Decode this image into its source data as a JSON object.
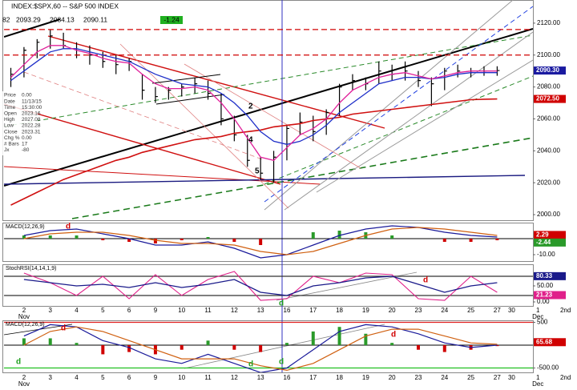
{
  "header": {
    "ohlc": [
      "82",
      "2093.29",
      "2084.13",
      "2090.11"
    ],
    "change": "-1.24"
  },
  "data_window": [
    [
      "Price",
      "0.00"
    ],
    [
      "Date",
      "11/13/15"
    ],
    [
      "Time",
      "15:30:00"
    ],
    [
      "Open",
      "2023.16"
    ],
    [
      "High",
      "2027.08"
    ],
    [
      "Low",
      "2022.28"
    ],
    [
      "Close",
      "2023.31"
    ],
    [
      "Chg %",
      "0.00"
    ],
    [
      "# Bars",
      "17"
    ],
    [
      "Jx",
      "-80"
    ]
  ],
  "chart_data": [
    {
      "type": "ohlc",
      "title": "INDEX:$SPX,60 -- S&P 500 INDEX",
      "color": "#000000",
      "x": [
        -0.5,
        0,
        0.5,
        1,
        1.5,
        2,
        2.5,
        3,
        3.5,
        4,
        4.5,
        5,
        5.5,
        6,
        6.5,
        7,
        7.5,
        8,
        8.5,
        9,
        9.5,
        10,
        10.5,
        11,
        11.5,
        12,
        12.5,
        13,
        13.5,
        14,
        14.5,
        15,
        15.5,
        16,
        16.5,
        17,
        17.5,
        18
      ],
      "high": [
        2092,
        2105,
        2110,
        2116,
        2114,
        2108,
        2106,
        2102,
        2100,
        2098,
        2088,
        2080,
        2080,
        2082,
        2086,
        2084,
        2076,
        2062,
        2050,
        2036,
        2040,
        2056,
        2064,
        2062,
        2066,
        2082,
        2088,
        2086,
        2096,
        2094,
        2096,
        2090,
        2086,
        2092,
        2094,
        2092,
        2093,
        2093
      ],
      "low": [
        2080,
        2086,
        2098,
        2104,
        2104,
        2098,
        2094,
        2092,
        2088,
        2090,
        2072,
        2070,
        2072,
        2074,
        2076,
        2072,
        2056,
        2046,
        2030,
        2022,
        2020,
        2034,
        2050,
        2046,
        2050,
        2062,
        2078,
        2078,
        2082,
        2084,
        2084,
        2080,
        2068,
        2078,
        2086,
        2086,
        2087,
        2087
      ],
      "close": [
        2088,
        2103,
        2108,
        2112,
        2106,
        2100,
        2100,
        2096,
        2094,
        2096,
        2078,
        2074,
        2078,
        2080,
        2082,
        2076,
        2060,
        2050,
        2034,
        2026,
        2036,
        2054,
        2058,
        2052,
        2064,
        2080,
        2084,
        2082,
        2090,
        2088,
        2090,
        2084,
        2082,
        2090,
        2090,
        2090,
        2090,
        2090.3
      ],
      "series": [
        {
          "color": "#d01010",
          "width": 1.6,
          "values": [
            2006,
            2010,
            2014,
            2018,
            2022,
            2025,
            2028,
            2031,
            2034,
            2036,
            2039,
            2041,
            2043,
            2045,
            2047,
            2048,
            2049,
            2051,
            2052,
            2053,
            2055,
            2056,
            2057,
            2059,
            2060,
            2061,
            2063,
            2064,
            2065,
            2066,
            2067,
            2068,
            2069,
            2070,
            2071,
            2072,
            2072.3,
            2072.5
          ]
        },
        {
          "color": "#1f2fc8",
          "width": 1.3,
          "values": [
            2084,
            2090,
            2096,
            2102,
            2104,
            2104,
            2102,
            2100,
            2098,
            2096,
            2092,
            2088,
            2085,
            2082,
            2081,
            2080,
            2076,
            2070,
            2062,
            2052,
            2046,
            2044,
            2046,
            2050,
            2056,
            2064,
            2070,
            2076,
            2082,
            2084,
            2086,
            2086,
            2085,
            2086,
            2088,
            2089,
            2089,
            2089
          ]
        },
        {
          "color": "#e0209a",
          "width": 1.3,
          "values": [
            2086,
            2094,
            2102,
            2106,
            2106,
            2103,
            2101,
            2098,
            2096,
            2095,
            2088,
            2082,
            2079,
            2079,
            2080,
            2078,
            2070,
            2060,
            2048,
            2036,
            2034,
            2042,
            2050,
            2054,
            2060,
            2070,
            2078,
            2082,
            2086,
            2088,
            2089,
            2087,
            2085,
            2087,
            2089,
            2090,
            2090,
            2090
          ]
        }
      ],
      "hlines": [
        {
          "value": 2116,
          "color": "#d00000",
          "dash": true
        },
        {
          "value": 2100,
          "color": "#d00000",
          "dash": true
        }
      ],
      "tags": [
        {
          "value": 2090.3,
          "label": "2090.30",
          "color": "#1a1aa0"
        },
        {
          "value": 2072.5,
          "label": "2072.50",
          "color": "#d00000"
        }
      ],
      "annotations": [
        "2",
        "4",
        "5"
      ],
      "xlim": [
        -0.76,
        19.36
      ],
      "ylim": [
        1996.5,
        2134.5
      ],
      "yticks": [
        {
          "value": 2000,
          "label": "2000.00"
        },
        {
          "value": 2020,
          "label": "2020.00"
        },
        {
          "value": 2040,
          "label": "2040.00"
        },
        {
          "value": 2060,
          "label": "2060.00"
        },
        {
          "value": 2080,
          "label": "2080.00"
        },
        {
          "value": 2100,
          "label": "2100.00"
        },
        {
          "value": 2120,
          "label": "2120.00"
        }
      ],
      "xticks": [
        {
          "value": 0,
          "label": "2"
        },
        {
          "value": 1,
          "label": "3"
        },
        {
          "value": 2,
          "label": "4"
        },
        {
          "value": 3,
          "label": "5"
        },
        {
          "value": 4,
          "label": "6"
        },
        {
          "value": 5,
          "label": "9"
        },
        {
          "value": 6,
          "label": "10"
        },
        {
          "value": 7,
          "label": "11"
        },
        {
          "value": 8,
          "label": "12"
        },
        {
          "value": 9,
          "label": "13"
        },
        {
          "value": 10,
          "label": "16"
        },
        {
          "value": 11,
          "label": "17"
        },
        {
          "value": 12,
          "label": "18"
        },
        {
          "value": 13,
          "label": "19"
        },
        {
          "value": 14,
          "label": "20"
        },
        {
          "value": 15,
          "label": "23"
        },
        {
          "value": 16,
          "label": "24"
        },
        {
          "value": 17,
          "label": "25"
        },
        {
          "value": 18,
          "label": "27"
        },
        {
          "value": 18.55,
          "label": "30"
        },
        {
          "value": 19.55,
          "label": "1"
        },
        {
          "value": 20.6,
          "label": "2nd"
        }
      ],
      "months": [
        {
          "value": 0,
          "label": "Nov"
        },
        {
          "value": 19.55,
          "label": "Dec"
        }
      ]
    },
    {
      "type": "macd",
      "title": "MACD(12,26,9)",
      "x": [
        0,
        1,
        2,
        3,
        4,
        5,
        6,
        7,
        8,
        9,
        10,
        11,
        12,
        13,
        14,
        15,
        16,
        17,
        18
      ],
      "series": [
        {
          "color": "#1a1a9a",
          "width": 1.2,
          "values": [
            2,
            5,
            6,
            3,
            0,
            -4,
            -4,
            -2,
            -6,
            -12,
            -10,
            -4,
            2,
            6,
            8,
            7,
            4,
            2,
            1
          ]
        },
        {
          "color": "#d06010",
          "width": 1.2,
          "values": [
            0,
            3,
            4,
            4,
            2,
            -1,
            -3,
            -3,
            -4,
            -8,
            -10,
            -8,
            -3,
            2,
            6,
            7,
            6,
            4,
            2
          ]
        }
      ],
      "histogram": [
        2,
        2,
        2,
        -1,
        -2,
        -3,
        -1,
        1,
        -2,
        -4,
        0,
        4,
        5,
        4,
        2,
        0,
        -2,
        -2,
        -1
      ],
      "histogram_colors": {
        "up": "#2a9a2a",
        "down": "#d00000"
      },
      "tags": [
        {
          "value": 2.29,
          "label": "2.29",
          "color": "#d00000"
        },
        {
          "value": -2.44,
          "label": "-2.44",
          "color": "#2a9a2a"
        }
      ],
      "annotations": [
        "d"
      ],
      "ylim": [
        -14,
        10
      ],
      "yticks": [
        {
          "value": -10,
          "label": "-10.00"
        }
      ]
    },
    {
      "type": "line",
      "title": "StochRSI(14,14,1,9)",
      "x": [
        0,
        1,
        2,
        3,
        4,
        5,
        6,
        7,
        8,
        9,
        10,
        11,
        12,
        13,
        14,
        15,
        16,
        17,
        18
      ],
      "series": [
        {
          "color": "#e0208a",
          "width": 1.1,
          "values": [
            90,
            60,
            20,
            80,
            10,
            85,
            20,
            70,
            95,
            5,
            10,
            80,
            60,
            90,
            85,
            10,
            5,
            80,
            30
          ]
        },
        {
          "color": "#1a1a8a",
          "width": 1.3,
          "values": [
            70,
            60,
            50,
            55,
            45,
            60,
            45,
            55,
            70,
            30,
            20,
            50,
            60,
            75,
            80,
            55,
            30,
            50,
            60
          ]
        }
      ],
      "hlines": [
        {
          "value": 80,
          "color": "#333333",
          "dash": false
        },
        {
          "value": 20,
          "color": "#333333",
          "dash": false
        }
      ],
      "tags": [
        {
          "value": 80.33,
          "label": "80.33",
          "color": "#1a1a8a"
        },
        {
          "value": 21.23,
          "label": "21.23",
          "color": "#e0208a"
        }
      ],
      "annotations": [
        "d",
        "d"
      ],
      "ylim": [
        -12.5,
        117.5
      ],
      "yticks": [
        {
          "value": 50,
          "label": "50.00"
        },
        {
          "value": 0,
          "label": "0.00"
        }
      ]
    },
    {
      "type": "macd",
      "title": "MACD(12,26,9)",
      "x": [
        0,
        1,
        2,
        3,
        4,
        5,
        6,
        7,
        8,
        9,
        10,
        11,
        12,
        13,
        14,
        15,
        16,
        17,
        18
      ],
      "series": [
        {
          "color": "#1a1a9a",
          "width": 1.2,
          "values": [
            200,
            450,
            400,
            100,
            -50,
            -300,
            -400,
            -200,
            -400,
            -600,
            -500,
            -100,
            300,
            450,
            400,
            250,
            50,
            -50,
            0
          ]
        },
        {
          "color": "#d06010",
          "width": 1.2,
          "values": [
            0,
            300,
            400,
            300,
            100,
            -100,
            -300,
            -300,
            -300,
            -450,
            -550,
            -400,
            -100,
            200,
            350,
            350,
            200,
            50,
            20
          ]
        }
      ],
      "histogram": [
        150,
        150,
        50,
        -200,
        -150,
        -200,
        -100,
        100,
        -100,
        -150,
        50,
        300,
        400,
        250,
        50,
        -100,
        -150,
        -100,
        -20
      ],
      "histogram_colors": {
        "up": "#2a9a2a",
        "down": "#d00000"
      },
      "hlines": [
        {
          "value": 500,
          "color": "#e02020",
          "dash": false
        },
        {
          "value": -500,
          "color": "#20c020",
          "dash": false
        }
      ],
      "tags": [
        {
          "value": 65.68,
          "label": "65.68",
          "color": "#d00000"
        }
      ],
      "annotations": [
        "d",
        "d",
        "d",
        "d",
        "d"
      ],
      "ylim": [
        -596,
        544
      ],
      "yticks": [
        500,
        {
          "value": -500,
          "label": "-500.00"
        }
      ]
    }
  ]
}
